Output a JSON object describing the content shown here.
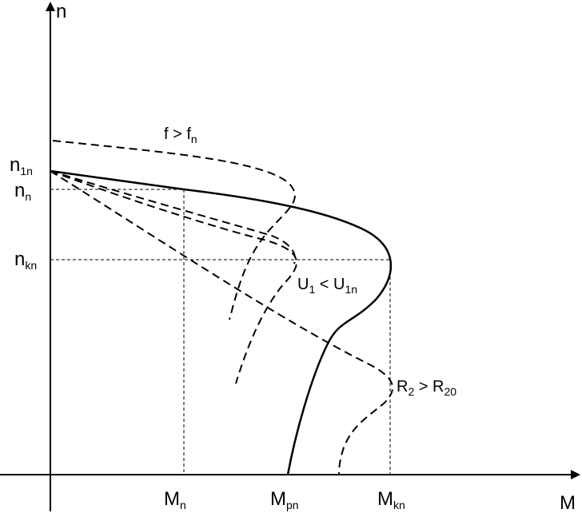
{
  "axes": {
    "y_label": "n",
    "x_label": "M"
  },
  "y_labels": [
    {
      "main": "n",
      "sub": "1n"
    },
    {
      "main": "n",
      "sub": "n"
    },
    {
      "main": "n",
      "sub": "kn"
    }
  ],
  "x_labels": [
    {
      "main": "M",
      "sub": "n"
    },
    {
      "main": "M",
      "sub": "pn"
    },
    {
      "main": "M",
      "sub": "kn"
    }
  ],
  "annotations": [
    {
      "parts": [
        {
          "main": "f > f",
          "sub": "n"
        }
      ]
    },
    {
      "parts": [
        {
          "main": "U",
          "sub": "1"
        },
        {
          "main": " < U",
          "sub": "1n"
        }
      ]
    },
    {
      "parts": [
        {
          "main": "R",
          "sub": "2"
        },
        {
          "main": " > R",
          "sub": "20"
        }
      ]
    }
  ]
}
